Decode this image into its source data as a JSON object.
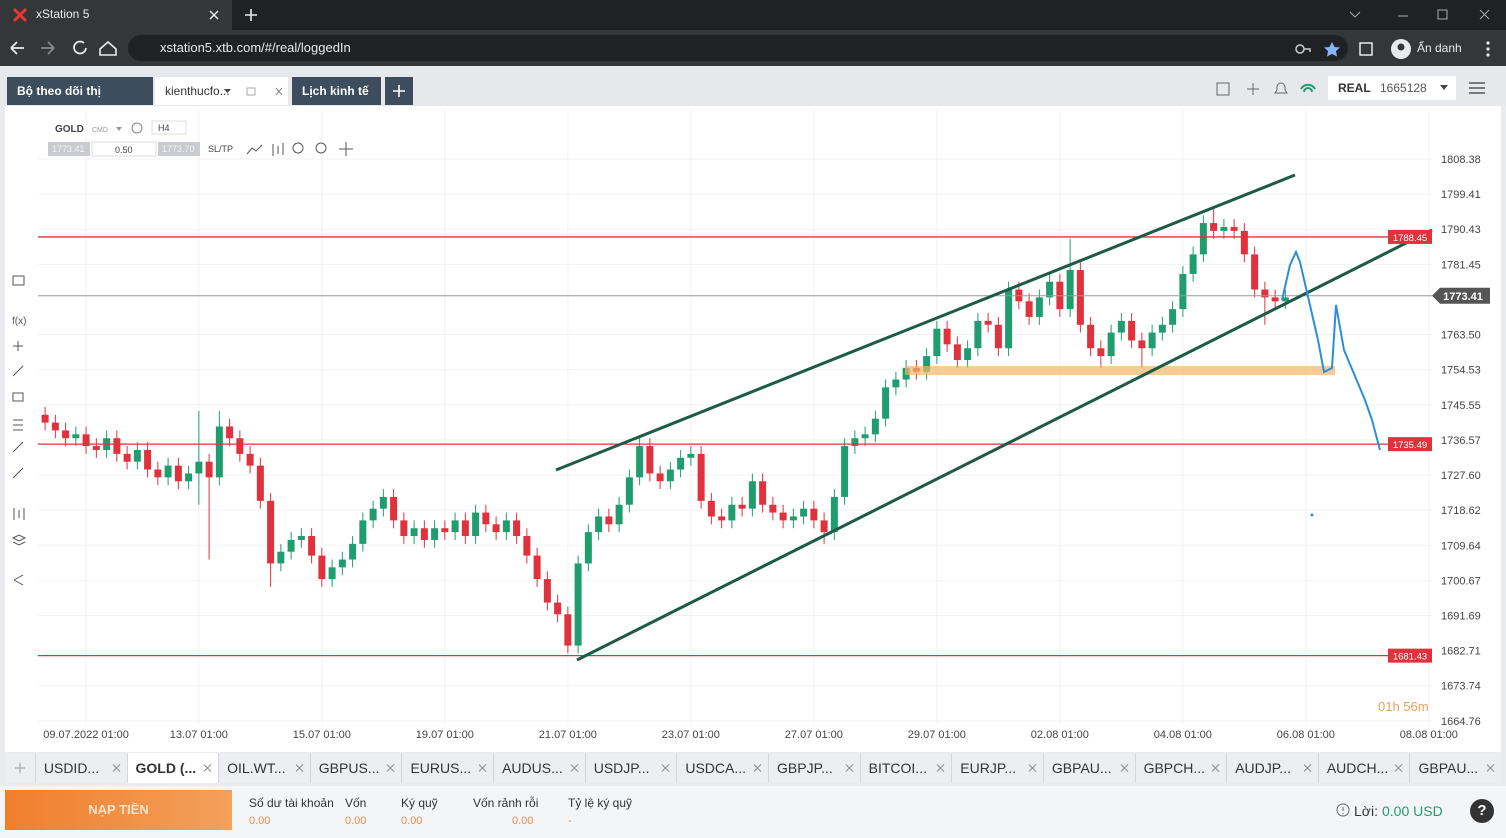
{
  "browser": {
    "tab_title": "xStation 5",
    "url": "xstation5.xtb.com/#/real/loggedIn",
    "profile": "Ẩn danh"
  },
  "app": {
    "tabs": [
      "Bộ theo dõi thị trường",
      "kienthucfo...",
      "Lịch kinh tế"
    ],
    "account_type": "REAL",
    "account_id": "1665128"
  },
  "toolbar": {
    "symbol": "GOLD",
    "symbol_type": "CMD",
    "timeframe": "H4",
    "bid": "1773.41",
    "volume": "0.50",
    "ask": "1773.70",
    "sltp": "SL/TP",
    "fx": "f(x)"
  },
  "chart_data": {
    "type": "candlestick",
    "up_color": "#1f9d6f",
    "down_color": "#e0323c",
    "grid": true,
    "open": [
      1743,
      1741,
      1739,
      1737,
      1738,
      1735,
      1734,
      1737,
      1733,
      1731,
      1734,
      1729,
      1727,
      1730,
      1726,
      1728,
      1731,
      1727,
      1740,
      1737,
      1733,
      1730,
      1721,
      1705,
      1708,
      1711,
      1712,
      1707,
      1701,
      1704,
      1706,
      1710,
      1716,
      1719,
      1722,
      1716,
      1712,
      1714,
      1711,
      1714,
      1713,
      1716,
      1712,
      1718,
      1715,
      1713,
      1716,
      1712,
      1707,
      1701,
      1695,
      1692,
      1684,
      1705,
      1713,
      1717,
      1715,
      1720,
      1727,
      1735,
      1728,
      1726,
      1729,
      1732,
      1733,
      1721,
      1717,
      1716,
      1720,
      1719,
      1726,
      1720,
      1718,
      1716,
      1717,
      1719,
      1716,
      1713,
      1722,
      1735,
      1737,
      1738,
      1742,
      1750,
      1752,
      1755,
      1754,
      1758,
      1765,
      1761,
      1757,
      1760,
      1767,
      1766,
      1760,
      1775,
      1772,
      1768,
      1773,
      1777,
      1770,
      1780,
      1766,
      1760,
      1758,
      1764,
      1767,
      1762,
      1760,
      1764,
      1766,
      1770,
      1779,
      1784,
      1792,
      1790,
      1791,
      1790,
      1784,
      1775,
      1773,
      1772
    ],
    "high": [
      1745,
      1743,
      1741,
      1740,
      1740,
      1737,
      1739,
      1739,
      1735,
      1736,
      1736,
      1731,
      1732,
      1732,
      1730,
      1744,
      1733,
      1744,
      1742,
      1739,
      1735,
      1732,
      1723,
      1710,
      1713,
      1714,
      1714,
      1709,
      1706,
      1708,
      1712,
      1718,
      1721,
      1724,
      1724,
      1718,
      1716,
      1716,
      1716,
      1716,
      1718,
      1718,
      1720,
      1720,
      1717,
      1718,
      1718,
      1714,
      1709,
      1703,
      1697,
      1694,
      1707,
      1715,
      1719,
      1719,
      1722,
      1729,
      1737,
      1737,
      1730,
      1731,
      1734,
      1735,
      1735,
      1723,
      1719,
      1722,
      1722,
      1728,
      1728,
      1722,
      1720,
      1719,
      1721,
      1721,
      1718,
      1724,
      1737,
      1739,
      1740,
      1744,
      1752,
      1754,
      1757,
      1757,
      1760,
      1767,
      1767,
      1763,
      1762,
      1769,
      1769,
      1768,
      1777,
      1777,
      1774,
      1775,
      1779,
      1779,
      1788,
      1782,
      1768,
      1762,
      1766,
      1769,
      1769,
      1764,
      1766,
      1768,
      1772,
      1781,
      1786,
      1794,
      1796,
      1793,
      1793,
      1792,
      1786,
      1777,
      1775,
      1775
    ],
    "low": [
      1739,
      1737,
      1735,
      1735,
      1733,
      1732,
      1732,
      1731,
      1729,
      1729,
      1727,
      1725,
      1725,
      1724,
      1724,
      1720,
      1706,
      1725,
      1735,
      1731,
      1728,
      1719,
      1699,
      1703,
      1706,
      1709,
      1705,
      1699,
      1699,
      1702,
      1704,
      1708,
      1714,
      1717,
      1714,
      1710,
      1710,
      1709,
      1709,
      1711,
      1711,
      1710,
      1710,
      1713,
      1711,
      1711,
      1710,
      1705,
      1699,
      1693,
      1690,
      1682,
      1682,
      1703,
      1711,
      1713,
      1713,
      1718,
      1725,
      1726,
      1724,
      1724,
      1727,
      1730,
      1719,
      1715,
      1714,
      1714,
      1717,
      1717,
      1718,
      1716,
      1714,
      1714,
      1715,
      1714,
      1710,
      1711,
      1720,
      1733,
      1735,
      1736,
      1740,
      1748,
      1750,
      1752,
      1752,
      1756,
      1759,
      1755,
      1755,
      1758,
      1764,
      1758,
      1758,
      1770,
      1766,
      1766,
      1771,
      1768,
      1768,
      1764,
      1758,
      1755,
      1756,
      1762,
      1760,
      1755,
      1758,
      1762,
      1764,
      1768,
      1777,
      1782,
      1788,
      1788,
      1788,
      1782,
      1773,
      1766,
      1770,
      1770
    ],
    "close": [
      1741,
      1739,
      1737,
      1738,
      1735,
      1734,
      1737,
      1733,
      1731,
      1734,
      1729,
      1727,
      1730,
      1726,
      1728,
      1731,
      1727,
      1740,
      1737,
      1733,
      1730,
      1721,
      1705,
      1708,
      1711,
      1712,
      1707,
      1701,
      1704,
      1706,
      1710,
      1716,
      1719,
      1722,
      1716,
      1712,
      1714,
      1711,
      1714,
      1713,
      1716,
      1712,
      1718,
      1715,
      1713,
      1716,
      1712,
      1707,
      1701,
      1695,
      1692,
      1684,
      1705,
      1713,
      1717,
      1715,
      1720,
      1727,
      1735,
      1728,
      1726,
      1729,
      1732,
      1733,
      1721,
      1717,
      1716,
      1720,
      1719,
      1726,
      1720,
      1718,
      1716,
      1717,
      1719,
      1716,
      1713,
      1722,
      1735,
      1737,
      1738,
      1742,
      1750,
      1752,
      1755,
      1754,
      1758,
      1765,
      1761,
      1757,
      1760,
      1767,
      1766,
      1760,
      1775,
      1772,
      1768,
      1773,
      1777,
      1770,
      1780,
      1766,
      1760,
      1758,
      1764,
      1767,
      1762,
      1760,
      1764,
      1766,
      1770,
      1779,
      1784,
      1792,
      1790,
      1791,
      1790,
      1784,
      1775,
      1773,
      1772,
      1773
    ],
    "xlim": [
      -0.4,
      135.5
    ],
    "xticks": [
      {
        "value": 4,
        "label": "09.07.2022 01:00"
      },
      {
        "value": 15,
        "label": "13.07 01:00"
      },
      {
        "value": 27,
        "label": "15.07 01:00"
      },
      {
        "value": 39,
        "label": "19.07 01:00"
      },
      {
        "value": 51,
        "label": "21.07 01:00"
      },
      {
        "value": 63,
        "label": "23.07 01:00"
      },
      {
        "value": 75,
        "label": "27.07 01:00"
      },
      {
        "value": 87,
        "label": "29.07 01:00"
      },
      {
        "value": 99,
        "label": "02.08 01:00"
      },
      {
        "value": 111,
        "label": "04.08 01:00"
      },
      {
        "value": 123,
        "label": "06.08 01:00"
      },
      {
        "value": 135,
        "label": "08.08 01:00"
      }
    ],
    "ylim": [
      1663.7,
      1820.9
    ],
    "yticks": [
      1808.38,
      1799.41,
      1790.43,
      1781.45,
      {
        "value": 1763.5,
        "label": "1763.50"
      },
      1754.53,
      1745.55,
      1736.57,
      {
        "value": 1727.6,
        "label": "1727.60"
      },
      1718.62,
      1709.64,
      1700.67,
      1691.69,
      1682.71,
      1673.74,
      1664.76
    ],
    "levels": [
      {
        "value": 1788.45,
        "color": "#e0323c"
      },
      {
        "value": 1735.49,
        "color": "#e0323c"
      },
      {
        "value": 1681.43,
        "color": "#e0323c"
      }
    ],
    "current_price": 1773.41,
    "timer": "01h 56m"
  },
  "instrument_tabs": [
    "USDID...",
    "GOLD (...",
    "OIL.WT...",
    "GBPUS...",
    "EURUS...",
    "AUDUS...",
    "USDJP...",
    "USDCA...",
    "GBPJP...",
    "BITCOI...",
    "EURJP...",
    "GBPAU...",
    "GBPCH...",
    "AUDJP...",
    "AUDCH...",
    "GBPAU..."
  ],
  "footer": {
    "deposit": "NẠP TIỀN",
    "stats": [
      {
        "label": "Số dư tài khoản",
        "value": "0.00"
      },
      {
        "label": "Vốn",
        "value": "0.00"
      },
      {
        "label": "Ký quỹ",
        "value": "0.00"
      },
      {
        "label": "Vốn rảnh rỗi",
        "value": "0.00"
      },
      {
        "label": "Tỷ lệ ký quỹ",
        "value": "-"
      }
    ],
    "profit_label": "Lời:",
    "profit_value": "0.00 USD",
    "help": "?"
  }
}
